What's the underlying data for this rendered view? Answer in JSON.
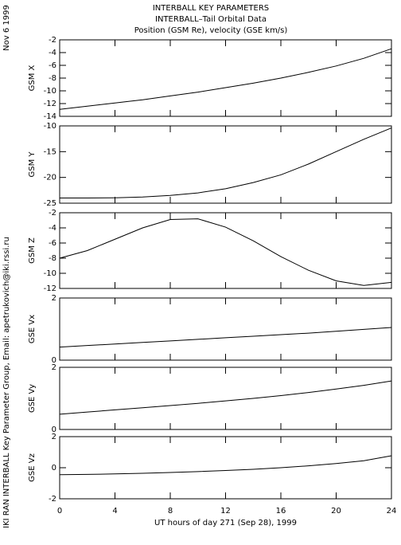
{
  "header": {
    "lines": [
      "INTERBALL KEY PARAMETERS",
      "INTERBALL–Tail Orbital Data",
      "Position (GSM Re), velocity (GSE km/s)"
    ],
    "date": "Nov  6 1999",
    "credit": "IKI RAN INTERBALL Key Parameter Group, Email: apetrukovich@iki.rssi.ru"
  },
  "chart_data": [
    {
      "type": "line",
      "ylabel": "GSM X",
      "x": [
        0,
        2,
        4,
        6,
        8,
        10,
        12,
        14,
        16,
        18,
        20,
        22,
        24
      ],
      "xlim": [
        0,
        24
      ],
      "xticks": [
        0,
        4,
        8,
        12,
        16,
        20,
        24
      ],
      "values": [
        -12.9,
        -12.4,
        -11.9,
        -11.4,
        -10.8,
        -10.2,
        -9.5,
        -8.8,
        -8.0,
        -7.1,
        -6.1,
        -4.9,
        -3.4
      ],
      "ylim": [
        -14,
        -2
      ],
      "yticks": [
        -2,
        -4,
        -6,
        -8,
        -10,
        -12,
        -14
      ],
      "color": "#000000"
    },
    {
      "type": "line",
      "ylabel": "GSM Y",
      "x": [
        0,
        2,
        4,
        6,
        8,
        10,
        12,
        14,
        16,
        18,
        20,
        22,
        24
      ],
      "xlim": [
        0,
        24
      ],
      "xticks": [
        0,
        4,
        8,
        12,
        16,
        20,
        24
      ],
      "values": [
        -24,
        -24,
        -23.95,
        -23.8,
        -23.5,
        -23.0,
        -22.2,
        -21.0,
        -19.5,
        -17.4,
        -15.0,
        -12.6,
        -10.4
      ],
      "ylim": [
        -25,
        -10
      ],
      "yticks": [
        -10,
        -15,
        -20,
        -25
      ],
      "color": "#000000"
    },
    {
      "type": "line",
      "ylabel": "GSM Z",
      "x": [
        0,
        2,
        4,
        6,
        8,
        10,
        12,
        14,
        16,
        18,
        20,
        22,
        24
      ],
      "xlim": [
        0,
        24
      ],
      "xticks": [
        0,
        4,
        8,
        12,
        16,
        20,
        24
      ],
      "values": [
        -8.0,
        -7.0,
        -5.5,
        -4.0,
        -2.9,
        -2.8,
        -3.9,
        -5.7,
        -7.8,
        -9.6,
        -11.0,
        -11.6,
        -11.2
      ],
      "ylim": [
        -12,
        -2
      ],
      "yticks": [
        -2,
        -4,
        -6,
        -8,
        -10,
        -12
      ],
      "color": "#000000"
    },
    {
      "type": "line",
      "ylabel": "GSE Vx",
      "x": [
        0,
        2,
        4,
        6,
        8,
        10,
        12,
        14,
        16,
        18,
        20,
        22,
        24
      ],
      "xlim": [
        0,
        24
      ],
      "xticks": [
        0,
        4,
        8,
        12,
        16,
        20,
        24
      ],
      "values": [
        0.42,
        0.47,
        0.52,
        0.57,
        0.62,
        0.67,
        0.72,
        0.77,
        0.82,
        0.87,
        0.93,
        0.99,
        1.05
      ],
      "ylim": [
        0,
        2
      ],
      "yticks": [
        0,
        2
      ],
      "color": "#000000"
    },
    {
      "type": "line",
      "ylabel": "GSE Vy",
      "x": [
        0,
        2,
        4,
        6,
        8,
        10,
        12,
        14,
        16,
        18,
        20,
        22,
        24
      ],
      "xlim": [
        0,
        24
      ],
      "xticks": [
        0,
        4,
        8,
        12,
        16,
        20,
        24
      ],
      "values": [
        0.49,
        0.56,
        0.63,
        0.7,
        0.77,
        0.84,
        0.92,
        1.0,
        1.09,
        1.19,
        1.3,
        1.42,
        1.56
      ],
      "ylim": [
        0,
        2
      ],
      "yticks": [
        0,
        2
      ],
      "color": "#000000"
    },
    {
      "type": "line",
      "ylabel": "GSE Vz",
      "x": [
        0,
        2,
        4,
        6,
        8,
        10,
        12,
        14,
        16,
        18,
        20,
        22,
        24
      ],
      "xlim": [
        0,
        24
      ],
      "xticks": [
        0,
        4,
        8,
        12,
        16,
        20,
        24
      ],
      "values": [
        -0.45,
        -0.43,
        -0.4,
        -0.36,
        -0.31,
        -0.25,
        -0.18,
        -0.1,
        0.0,
        0.12,
        0.27,
        0.45,
        0.77
      ],
      "ylim": [
        -2,
        2
      ],
      "yticks": [
        -2,
        0,
        2
      ],
      "color": "#000000",
      "xlabel": "UT hours of day 271 (Sep 28), 1999"
    }
  ]
}
